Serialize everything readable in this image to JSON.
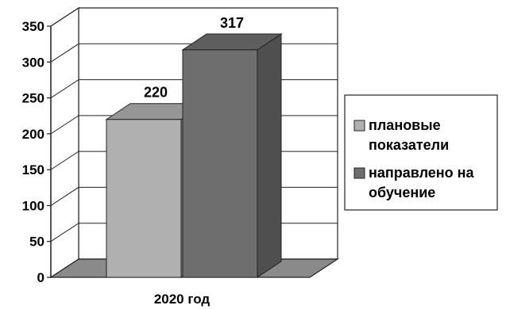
{
  "chart_data": {
    "type": "bar",
    "categories": [
      "2020 год"
    ],
    "series": [
      {
        "name": "плановые показатели",
        "values": [
          220
        ],
        "color": "#b0b0b0"
      },
      {
        "name": "направлено на обучение",
        "values": [
          317
        ],
        "color": "#6e6e6e"
      }
    ],
    "ylim": [
      0,
      350
    ],
    "yticks": [
      0,
      50,
      100,
      150,
      200,
      250,
      300,
      350
    ],
    "grid": true,
    "legend_position": "right",
    "style": "3d",
    "data_labels": [
      "220",
      "317"
    ],
    "legend": [
      {
        "lines": [
          "плановые",
          "показатели"
        ],
        "color": "#b0b0b0"
      },
      {
        "lines": [
          "направлено на",
          "обучение"
        ],
        "color": "#6e6e6e"
      }
    ]
  }
}
